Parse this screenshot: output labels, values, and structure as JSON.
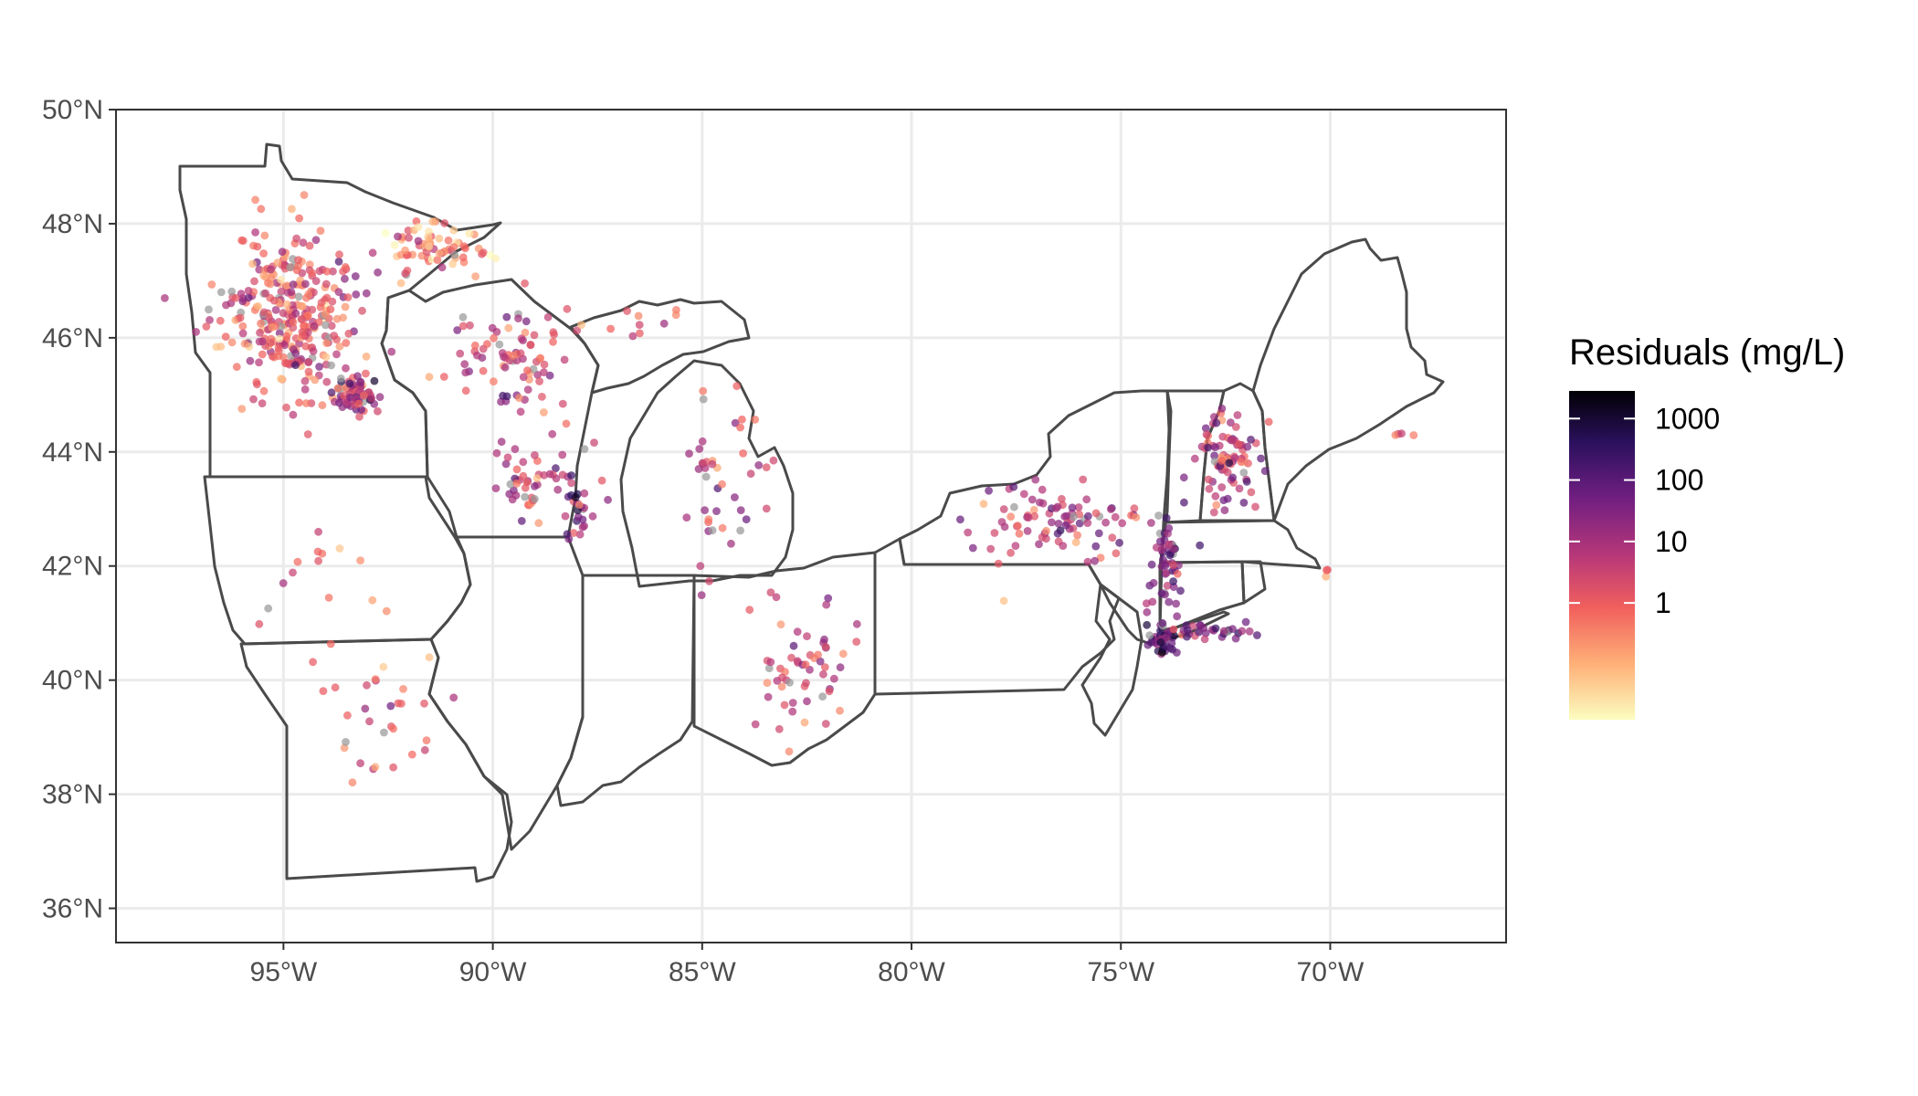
{
  "map": {
    "projection": "equirectangular lon/lat",
    "lon_range": [
      -99.0,
      -65.8
    ],
    "lat_range": [
      35.4,
      50.0
    ],
    "x_ticks": [
      {
        "lon": -95,
        "label": "95°W"
      },
      {
        "lon": -90,
        "label": "90°W"
      },
      {
        "lon": -85,
        "label": "85°W"
      },
      {
        "lon": -80,
        "label": "80°W"
      },
      {
        "lon": -75,
        "label": "75°W"
      },
      {
        "lon": -70,
        "label": "70°W"
      }
    ],
    "y_ticks": [
      {
        "lat": 36,
        "label": "36°N"
      },
      {
        "lat": 38,
        "label": "38°N"
      },
      {
        "lat": 40,
        "label": "40°N"
      },
      {
        "lat": 42,
        "label": "42°N"
      },
      {
        "lat": 44,
        "label": "44°N"
      },
      {
        "lat": 46,
        "label": "46°N"
      },
      {
        "lat": 48,
        "label": "48°N"
      },
      {
        "lat": 50,
        "label": "50°N"
      }
    ],
    "grid": true,
    "states_shown": [
      "Minnesota",
      "Wisconsin",
      "Michigan",
      "Iowa",
      "Missouri",
      "Illinois",
      "Indiana",
      "Ohio",
      "Pennsylvania",
      "New York",
      "New Jersey",
      "Vermont",
      "New Hampshire",
      "Maine",
      "Massachusetts",
      "Connecticut",
      "Rhode Island"
    ],
    "colors": {
      "background": "#ffffff",
      "grid": "#ebebeb",
      "border": "#333333",
      "state_outline": "#4a4a4a",
      "na_point": "#999999"
    }
  },
  "legend": {
    "title": "Residuals (mg/L)",
    "placement": "right",
    "scale": "log10",
    "labels": [
      {
        "value": 1000,
        "label": "1000"
      },
      {
        "value": 100,
        "label": "100"
      },
      {
        "value": 10,
        "label": "10"
      },
      {
        "value": 1,
        "label": "1"
      }
    ],
    "domain_log10": [
      -1.9,
      3.45
    ],
    "palette": [
      "#fcfdbf",
      "#feb078",
      "#f1605d",
      "#b73779",
      "#721f81",
      "#2c115f",
      "#000004"
    ]
  },
  "chart_data": {
    "type": "scatter",
    "title": "",
    "xlabel": "",
    "ylabel": "",
    "color_variable": "Residuals (mg/L)",
    "clusters": [
      {
        "region": "Minnesota core",
        "center": [
          -94.8,
          46.4
        ],
        "spread": [
          1.35,
          1.2
        ],
        "count": 330,
        "median_log10": 0.15
      },
      {
        "region": "Minneapolis metro",
        "center": [
          -93.2,
          44.95
        ],
        "spread": [
          0.55,
          0.35
        ],
        "count": 60,
        "median_log10": 1.1
      },
      {
        "region": "Minnesota north shore",
        "center": [
          -91.2,
          47.6
        ],
        "spread": [
          1.1,
          0.45
        ],
        "count": 70,
        "median_log10": -0.6
      },
      {
        "region": "Wisconsin north",
        "center": [
          -89.5,
          45.6
        ],
        "spread": [
          1.2,
          0.8
        ],
        "count": 80,
        "median_log10": 0.4
      },
      {
        "region": "Wisconsin south",
        "center": [
          -89.0,
          43.4
        ],
        "spread": [
          1.0,
          0.6
        ],
        "count": 55,
        "median_log10": 0.8
      },
      {
        "region": "Milwaukee-Chicago",
        "center": [
          -88.0,
          42.9
        ],
        "spread": [
          0.25,
          0.5
        ],
        "count": 20,
        "median_log10": 1.5
      },
      {
        "region": "Michigan lower peninsula",
        "center": [
          -84.6,
          43.4
        ],
        "spread": [
          1.2,
          1.4
        ],
        "count": 45,
        "median_log10": 0.6
      },
      {
        "region": "Michigan upper peninsula",
        "center": [
          -86.5,
          46.2
        ],
        "spread": [
          1.3,
          0.3
        ],
        "count": 12,
        "median_log10": 0.0
      },
      {
        "region": "Iowa",
        "center": [
          -93.8,
          41.8
        ],
        "spread": [
          1.3,
          0.7
        ],
        "count": 15,
        "median_log10": 0.0
      },
      {
        "region": "Missouri",
        "center": [
          -92.7,
          39.2
        ],
        "spread": [
          1.3,
          1.2
        ],
        "count": 30,
        "median_log10": 0.2
      },
      {
        "region": "Ohio",
        "center": [
          -82.6,
          40.2
        ],
        "spread": [
          1.1,
          0.8
        ],
        "count": 55,
        "median_log10": 0.7
      },
      {
        "region": "New York west/central",
        "center": [
          -76.5,
          42.8
        ],
        "spread": [
          1.7,
          0.6
        ],
        "count": 90,
        "median_log10": 0.9
      },
      {
        "region": "New York Hudson valley",
        "center": [
          -73.9,
          41.9
        ],
        "spread": [
          0.35,
          0.9
        ],
        "count": 60,
        "median_log10": 1.3
      },
      {
        "region": "New York City",
        "center": [
          -74.0,
          40.75
        ],
        "spread": [
          0.3,
          0.25
        ],
        "count": 35,
        "median_log10": 2.2
      },
      {
        "region": "Long Island",
        "center": [
          -72.9,
          40.85
        ],
        "spread": [
          0.8,
          0.12
        ],
        "count": 30,
        "median_log10": 1.4
      },
      {
        "region": "Vermont-New Hampshire",
        "center": [
          -72.4,
          43.9
        ],
        "spread": [
          0.6,
          0.7
        ],
        "count": 85,
        "median_log10": 0.6
      },
      {
        "region": "Maine coast",
        "center": [
          -68.2,
          44.3
        ],
        "spread": [
          0.2,
          0.1
        ],
        "count": 4,
        "median_log10": 0.5
      },
      {
        "region": "Massachusetts coast",
        "center": [
          -70.1,
          41.9
        ],
        "spread": [
          0.1,
          0.1
        ],
        "count": 3,
        "median_log10": -0.5
      }
    ]
  }
}
